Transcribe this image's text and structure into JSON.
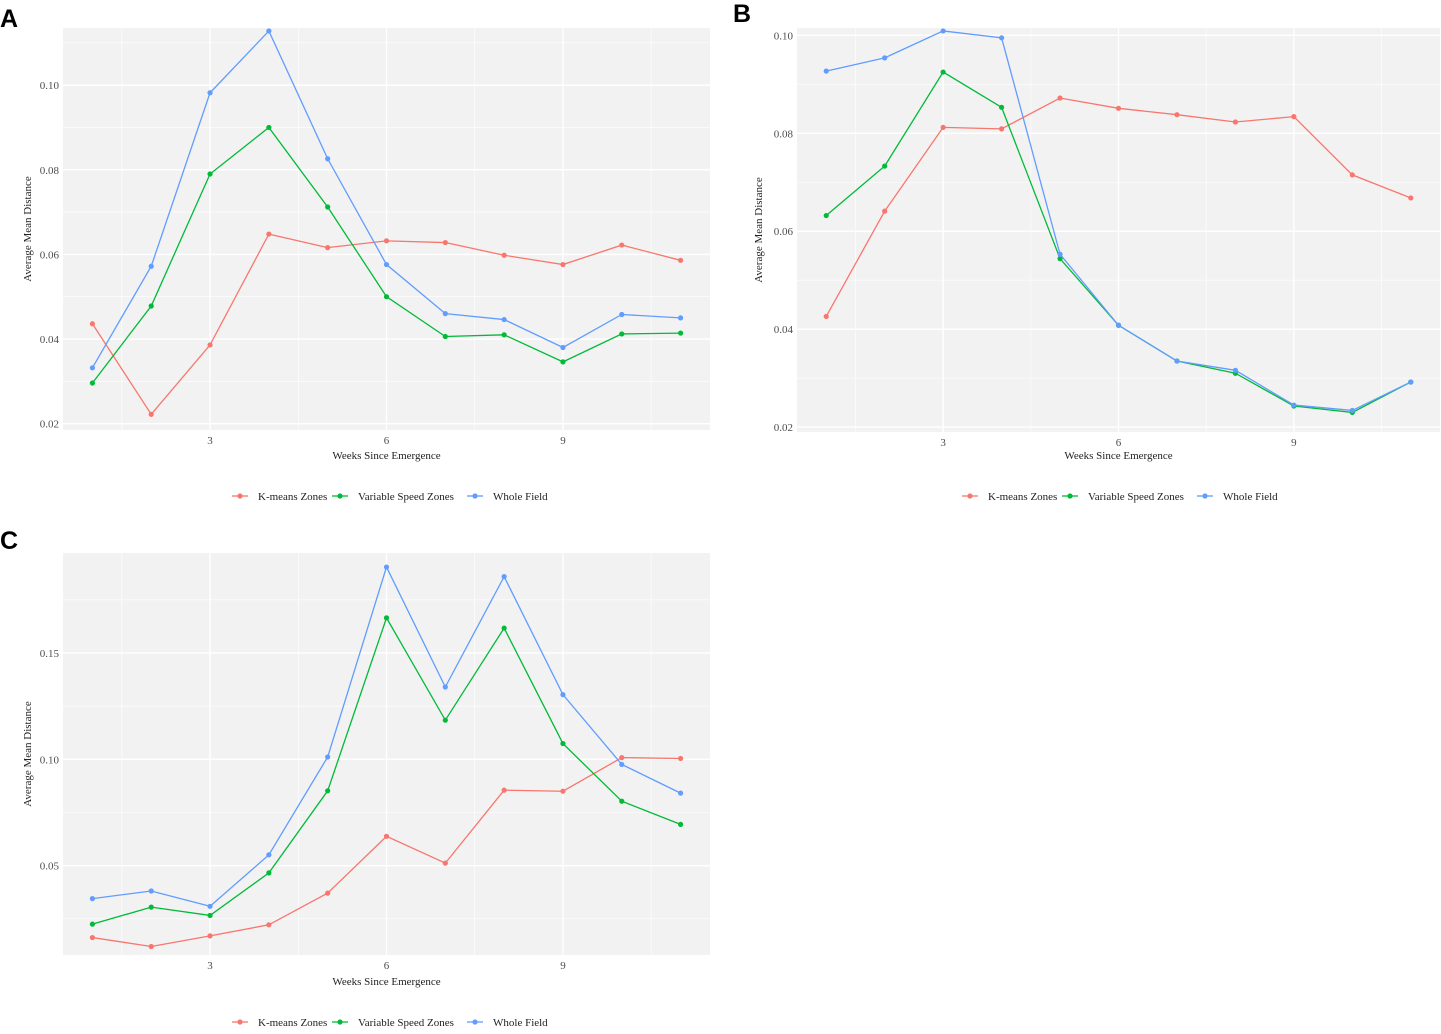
{
  "chart_data": [
    {
      "panel": "A",
      "type": "line",
      "xlabel": "Weeks Since Emergence",
      "ylabel": "Average Mean Distance",
      "x": [
        1,
        2,
        3,
        4,
        5,
        6,
        7,
        8,
        9,
        10,
        11
      ],
      "xticks": [
        3,
        6,
        9
      ],
      "xtick_labels": [
        "3",
        "6",
        "9"
      ],
      "xlim": [
        0.5,
        11.5
      ],
      "ylim": [
        0.0185,
        0.1135
      ],
      "yticks": [
        0.02,
        0.04,
        0.06,
        0.08,
        0.1
      ],
      "ytick_labels": [
        "0.02",
        "0.04",
        "0.06",
        "0.08",
        "0.10"
      ],
      "grid": true,
      "legend_position": "bottom",
      "series": [
        {
          "name": "K-means Zones",
          "color": "#f8766d",
          "values": [
            0.0436,
            0.0222,
            0.0386,
            0.0648,
            0.0616,
            0.0632,
            0.0628,
            0.0598,
            0.0576,
            0.0622,
            0.0586
          ]
        },
        {
          "name": "Variable Speed Zones",
          "color": "#00ba38",
          "values": [
            0.0296,
            0.0478,
            0.079,
            0.09,
            0.0712,
            0.05,
            0.0406,
            0.041,
            0.0346,
            0.0412,
            0.0414
          ]
        },
        {
          "name": "Whole Field",
          "color": "#619cff",
          "values": [
            0.0332,
            0.0572,
            0.0982,
            0.1128,
            0.0826,
            0.0576,
            0.046,
            0.0446,
            0.038,
            0.0458,
            0.045
          ]
        }
      ]
    },
    {
      "panel": "B",
      "type": "line",
      "xlabel": "Weeks Since Emergence",
      "ylabel": "Average Mean Distance",
      "x": [
        1,
        2,
        3,
        4,
        5,
        6,
        7,
        8,
        9,
        10,
        11
      ],
      "xticks": [
        3,
        6,
        9
      ],
      "xtick_labels": [
        "3",
        "6",
        "9"
      ],
      "xlim": [
        0.5,
        11.5
      ],
      "ylim": [
        0.019,
        0.1015
      ],
      "yticks": [
        0.02,
        0.04,
        0.06,
        0.08,
        0.1
      ],
      "ytick_labels": [
        "0.02",
        "0.04",
        "0.06",
        "0.08",
        "0.10"
      ],
      "grid": true,
      "legend_position": "bottom",
      "series": [
        {
          "name": "K-means Zones",
          "color": "#f8766d",
          "values": [
            0.0426,
            0.0641,
            0.0812,
            0.0809,
            0.0872,
            0.0851,
            0.0838,
            0.0823,
            0.0834,
            0.0715,
            0.0668
          ]
        },
        {
          "name": "Variable Speed Zones",
          "color": "#00ba38",
          "values": [
            0.0632,
            0.0733,
            0.0925,
            0.0853,
            0.0544,
            0.0408,
            0.0335,
            0.031,
            0.0243,
            0.023,
            0.0292
          ]
        },
        {
          "name": "Whole Field",
          "color": "#619cff",
          "values": [
            0.0927,
            0.0954,
            0.1009,
            0.0995,
            0.0553,
            0.0408,
            0.0335,
            0.0316,
            0.0245,
            0.0234,
            0.0292
          ]
        }
      ]
    },
    {
      "panel": "C",
      "type": "line",
      "xlabel": "Weeks Since Emergence",
      "ylabel": "Average Mean Distance",
      "x": [
        1,
        2,
        3,
        4,
        5,
        6,
        7,
        8,
        9,
        10,
        11
      ],
      "xticks": [
        3,
        6,
        9
      ],
      "xtick_labels": [
        "3",
        "6",
        "9"
      ],
      "xlim": [
        0.5,
        11.5
      ],
      "ylim": [
        0.008,
        0.197
      ],
      "yticks": [
        0.05,
        0.1,
        0.15
      ],
      "ytick_labels": [
        "0.05",
        "0.10",
        "0.15"
      ],
      "grid": true,
      "legend_position": "bottom",
      "series": [
        {
          "name": "K-means Zones",
          "color": "#f8766d",
          "values": [
            0.0162,
            0.012,
            0.017,
            0.0222,
            0.0371,
            0.0638,
            0.0512,
            0.0855,
            0.085,
            0.1008,
            0.1004
          ]
        },
        {
          "name": "Variable Speed Zones",
          "color": "#00ba38",
          "values": [
            0.0225,
            0.0305,
            0.0266,
            0.0466,
            0.0852,
            0.1665,
            0.1184,
            0.1617,
            0.1074,
            0.0803,
            0.0694
          ]
        },
        {
          "name": "Whole Field",
          "color": "#619cff",
          "values": [
            0.0345,
            0.0381,
            0.0309,
            0.0551,
            0.1011,
            0.1904,
            0.134,
            0.1859,
            0.1304,
            0.0976,
            0.0841
          ]
        }
      ]
    }
  ]
}
